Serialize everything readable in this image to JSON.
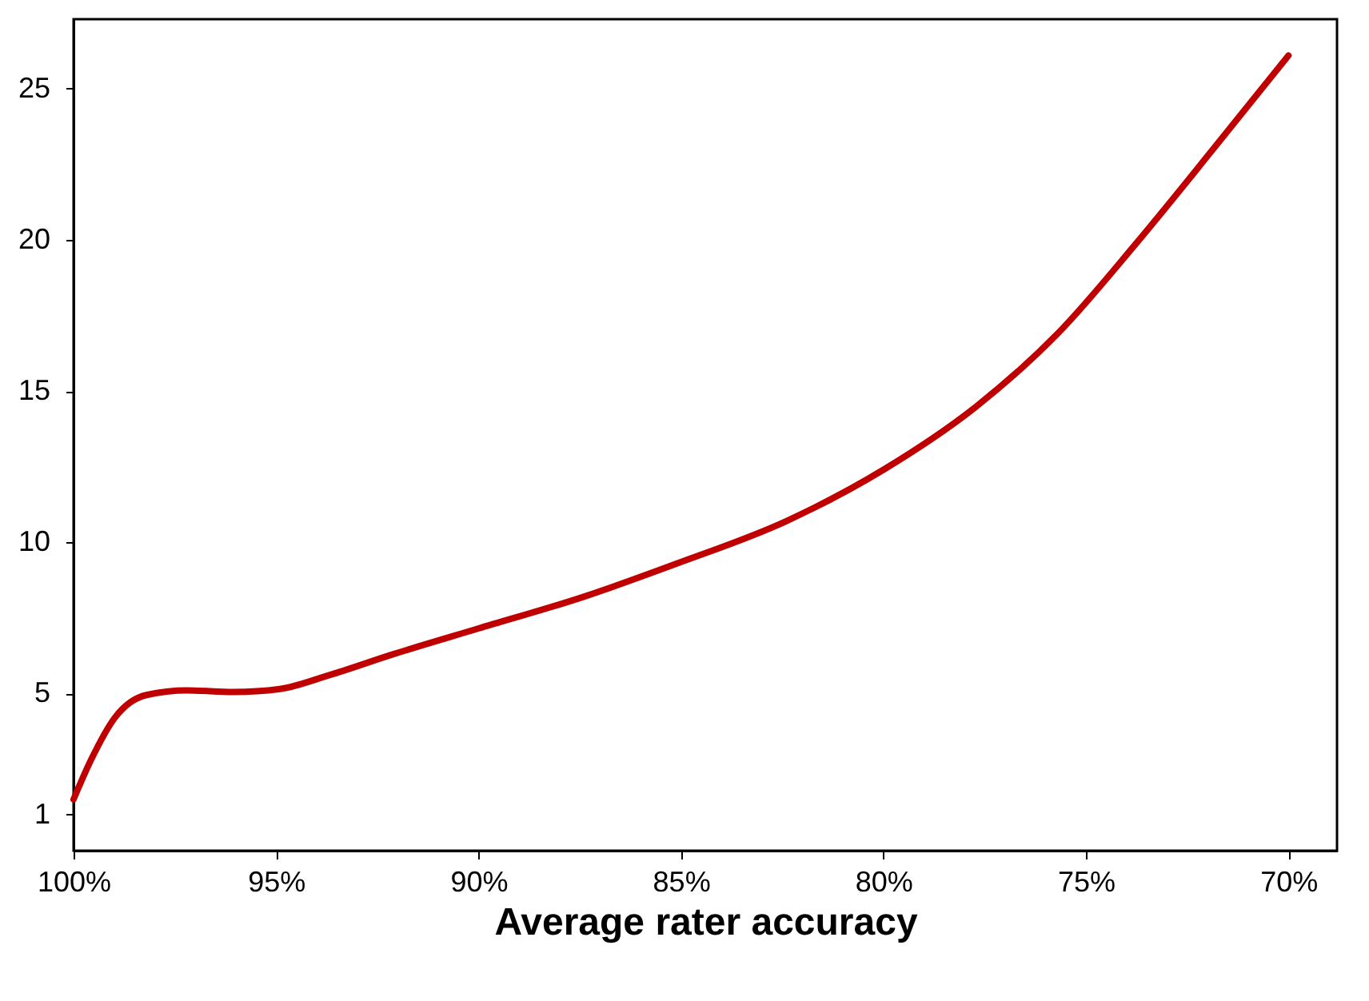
{
  "chart_data": {
    "type": "line",
    "xlabel": "Average rater accuracy",
    "x": [
      100,
      99.57,
      98.98,
      98.2,
      97.2,
      96.05,
      94.9,
      93.7,
      92.1,
      90.0,
      87.4,
      85.1,
      82.4,
      80.0,
      77.7,
      75.7,
      73.75,
      71.8,
      70
    ],
    "series": [
      {
        "color": "#c00000",
        "values": [
          1.5,
          2.8,
          4.2,
          4.95,
          5.1,
          5.05,
          5.15,
          5.6,
          6.3,
          7.15,
          8.2,
          9.3,
          10.7,
          12.4,
          14.5,
          16.9,
          19.9,
          23.1,
          26.1
        ]
      }
    ],
    "xlim": [
      100,
      68.8
    ],
    "ylim": [
      -0.2,
      27.3
    ],
    "xticks": [
      {
        "value": 100,
        "label": "100%"
      },
      {
        "value": 95,
        "label": "95%"
      },
      {
        "value": 90,
        "label": "90%"
      },
      {
        "value": 85,
        "label": "85%"
      },
      {
        "value": 80,
        "label": "80%"
      },
      {
        "value": 75,
        "label": "75%"
      },
      {
        "value": 70,
        "label": "70%"
      }
    ],
    "yticks": [
      1,
      5,
      10,
      15,
      20,
      25
    ],
    "grid": false,
    "legend": false,
    "marker": "none",
    "line_style": "solid"
  }
}
